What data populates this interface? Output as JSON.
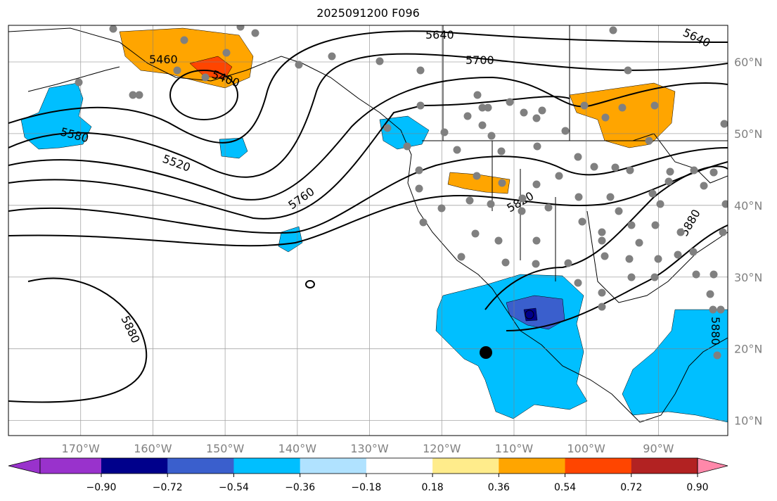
{
  "title": "2025091200 F096",
  "chart_data": {
    "type": "contour-map",
    "title": "2025091200 F096",
    "lon_range": [
      -180,
      -80.4
    ],
    "lat_range": [
      7.9,
      65.1
    ],
    "lon_ticks": [
      {
        "v": -170,
        "label": "170°W"
      },
      {
        "v": -160,
        "label": "160°W"
      },
      {
        "v": -150,
        "label": "150°W"
      },
      {
        "v": -140,
        "label": "140°W"
      },
      {
        "v": -130,
        "label": "130°W"
      },
      {
        "v": -120,
        "label": "120°W"
      },
      {
        "v": -110,
        "label": "110°W"
      },
      {
        "v": -100,
        "label": "100°W"
      },
      {
        "v": -90,
        "label": "90°W"
      }
    ],
    "lat_ticks": [
      {
        "v": 60,
        "label": "60°N"
      },
      {
        "v": 50,
        "label": "50°N"
      },
      {
        "v": 40,
        "label": "40°N"
      },
      {
        "v": 30,
        "label": "30°N"
      },
      {
        "v": 20,
        "label": "20°N"
      },
      {
        "v": 10,
        "label": "10°N"
      }
    ],
    "grid": true,
    "contour_labels": [
      "5460",
      "5400",
      "5580",
      "5520",
      "5640",
      "5700",
      "5760",
      "5820",
      "5880",
      "5880",
      "5640",
      "5880",
      "5880"
    ],
    "colorbar": {
      "ticks": [
        "−0.90",
        "−0.72",
        "−0.54",
        "−0.36",
        "−0.18",
        "0.18",
        "0.36",
        "0.54",
        "0.72",
        "0.90"
      ],
      "colors": [
        "#9932cc",
        "#00008b",
        "#3a5fcd",
        "#00bfff",
        "#b0e2ff",
        "#ffffff",
        "#ffec8b",
        "#ffa500",
        "#ff4500",
        "#b22222",
        "#ff88aa"
      ],
      "extend": "both"
    }
  }
}
